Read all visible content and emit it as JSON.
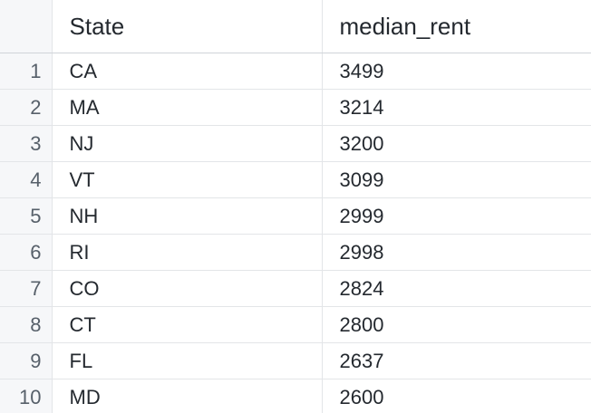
{
  "table": {
    "columns": [
      "State",
      "median_rent"
    ],
    "rows": [
      {
        "index": "1",
        "State": "CA",
        "median_rent": "3499"
      },
      {
        "index": "2",
        "State": "MA",
        "median_rent": "3214"
      },
      {
        "index": "3",
        "State": "NJ",
        "median_rent": "3200"
      },
      {
        "index": "4",
        "State": "VT",
        "median_rent": "3099"
      },
      {
        "index": "5",
        "State": "NH",
        "median_rent": "2999"
      },
      {
        "index": "6",
        "State": "RI",
        "median_rent": "2998"
      },
      {
        "index": "7",
        "State": "CO",
        "median_rent": "2824"
      },
      {
        "index": "8",
        "State": "CT",
        "median_rent": "2800"
      },
      {
        "index": "9",
        "State": "FL",
        "median_rent": "2637"
      },
      {
        "index": "10",
        "State": "MD",
        "median_rent": "2600"
      }
    ]
  },
  "colors": {
    "index_column_bg": "#f6f7f9",
    "grid_line": "#e3e5e8",
    "text": "#24292f",
    "index_text": "#57606a"
  }
}
